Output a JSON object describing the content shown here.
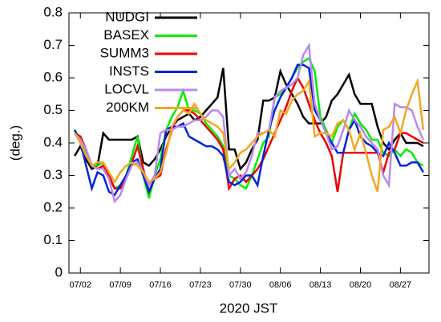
{
  "chart_data": {
    "type": "line",
    "x_label": "2020 JST",
    "y_label": "(deg.)",
    "x": [
      "07/01",
      "07/02",
      "07/03",
      "07/04",
      "07/05",
      "07/06",
      "07/07",
      "07/08",
      "07/09",
      "07/10",
      "07/11",
      "07/12",
      "07/13",
      "07/14",
      "07/15",
      "07/16",
      "07/17",
      "07/18",
      "07/19",
      "07/20",
      "07/21",
      "07/22",
      "07/23",
      "07/24",
      "07/25",
      "07/26",
      "07/27",
      "07/28",
      "07/29",
      "07/30",
      "07/31",
      "08/01",
      "08/02",
      "08/03",
      "08/04",
      "08/05",
      "08/06",
      "08/07",
      "08/08",
      "08/09",
      "08/10",
      "08/11",
      "08/12",
      "08/13",
      "08/14",
      "08/15",
      "08/16",
      "08/17",
      "08/18",
      "08/19",
      "08/20",
      "08/21",
      "08/22",
      "08/23",
      "08/24",
      "08/25",
      "08/26",
      "08/27",
      "08/28",
      "08/29",
      "08/30",
      "08/31"
    ],
    "xlim": [
      "06/30",
      "09/01"
    ],
    "xticks": [
      "07/02",
      "07/09",
      "07/16",
      "07/23",
      "07/30",
      "08/06",
      "08/13",
      "08/20",
      "08/27"
    ],
    "ylim": [
      0,
      0.8
    ],
    "yticks": [
      0,
      0.1,
      0.2,
      0.3,
      0.4,
      0.5,
      0.6,
      0.7,
      0.8
    ],
    "legend": "upper left",
    "series": [
      {
        "name": "NUDGI",
        "color": "#000000",
        "values": [
          0.36,
          0.39,
          0.35,
          0.32,
          0.33,
          0.43,
          0.41,
          0.41,
          0.41,
          0.41,
          0.41,
          0.42,
          0.34,
          0.33,
          0.35,
          0.38,
          0.42,
          0.45,
          0.47,
          0.48,
          0.49,
          0.47,
          0.48,
          0.5,
          0.52,
          0.54,
          0.63,
          0.38,
          0.38,
          0.32,
          0.34,
          0.38,
          0.41,
          0.53,
          0.53,
          0.54,
          0.62,
          0.58,
          0.55,
          0.52,
          0.48,
          0.46,
          0.46,
          0.46,
          0.48,
          0.53,
          0.55,
          0.58,
          0.61,
          0.55,
          0.52,
          0.52,
          0.52,
          0.45,
          0.4,
          0.38,
          0.41,
          0.43,
          0.4,
          0.4,
          0.4,
          0.39
        ]
      },
      {
        "name": "BASEX",
        "color": "#00ee00",
        "values": [
          0.44,
          0.41,
          0.37,
          0.33,
          0.33,
          0.34,
          0.29,
          0.26,
          0.27,
          0.3,
          0.36,
          0.42,
          0.3,
          0.23,
          0.3,
          0.35,
          0.44,
          0.48,
          0.51,
          0.56,
          0.5,
          0.5,
          0.49,
          0.46,
          0.44,
          0.42,
          0.39,
          0.3,
          0.29,
          0.27,
          0.26,
          0.3,
          0.35,
          0.4,
          0.42,
          0.54,
          0.55,
          0.57,
          0.6,
          0.63,
          0.65,
          0.66,
          0.62,
          0.48,
          0.44,
          0.4,
          0.45,
          0.47,
          0.44,
          0.49,
          0.46,
          0.44,
          0.41,
          0.41,
          0.37,
          0.36,
          0.38,
          0.36,
          0.38,
          0.37,
          0.34,
          0.33
        ]
      },
      {
        "name": "SUMM3",
        "color": "#ee0000",
        "values": [
          0.43,
          0.42,
          0.38,
          0.33,
          0.32,
          0.33,
          0.3,
          0.26,
          0.26,
          0.29,
          0.34,
          0.39,
          0.32,
          0.25,
          0.29,
          0.3,
          0.38,
          0.44,
          0.48,
          0.5,
          0.5,
          0.49,
          0.47,
          0.45,
          0.43,
          0.41,
          0.38,
          0.26,
          0.29,
          0.3,
          0.28,
          0.3,
          0.32,
          0.35,
          0.39,
          0.43,
          0.47,
          0.51,
          0.56,
          0.6,
          0.57,
          0.52,
          0.47,
          0.43,
          0.4,
          0.36,
          0.25,
          0.37,
          0.37,
          0.37,
          0.37,
          0.37,
          0.37,
          0.37,
          0.31,
          0.37,
          0.38,
          0.43,
          0.43,
          0.42,
          0.41,
          0.4
        ]
      },
      {
        "name": "INSTS",
        "color": "#0022dd",
        "values": [
          0.44,
          0.4,
          0.33,
          0.26,
          0.31,
          0.3,
          0.25,
          0.24,
          0.27,
          0.3,
          0.34,
          0.35,
          0.3,
          0.25,
          0.29,
          0.32,
          0.44,
          0.45,
          0.45,
          0.46,
          0.42,
          0.41,
          0.4,
          0.39,
          0.39,
          0.38,
          0.36,
          0.28,
          0.27,
          0.28,
          0.3,
          0.3,
          0.27,
          0.36,
          0.44,
          0.5,
          0.54,
          0.57,
          0.6,
          0.64,
          0.64,
          0.63,
          0.5,
          0.47,
          0.43,
          0.4,
          0.37,
          0.37,
          0.44,
          0.47,
          0.42,
          0.4,
          0.39,
          0.37,
          0.36,
          0.4,
          0.37,
          0.33,
          0.33,
          0.34,
          0.34,
          0.31
        ]
      },
      {
        "name": "LOCVL",
        "color": "#bb88ee",
        "values": [
          0.43,
          0.41,
          0.38,
          0.33,
          0.32,
          0.32,
          0.29,
          0.22,
          0.24,
          0.29,
          0.33,
          0.34,
          0.31,
          0.27,
          0.3,
          0.43,
          0.44,
          0.44,
          0.45,
          0.45,
          0.46,
          0.47,
          0.47,
          0.48,
          0.5,
          0.5,
          0.48,
          0.3,
          0.32,
          0.29,
          0.31,
          0.36,
          0.43,
          0.43,
          0.44,
          0.54,
          0.56,
          0.57,
          0.58,
          0.6,
          0.67,
          0.7,
          0.52,
          0.47,
          0.43,
          0.38,
          0.39,
          0.44,
          0.5,
          0.47,
          0.45,
          0.42,
          0.4,
          0.38,
          0.3,
          0.27,
          0.52,
          0.51,
          0.51,
          0.5,
          0.45,
          0.41
        ]
      },
      {
        "name": "200KM",
        "color": "#f5a623",
        "values": [
          0.43,
          0.4,
          0.36,
          0.33,
          0.34,
          0.34,
          0.31,
          0.28,
          0.31,
          0.33,
          0.34,
          0.33,
          0.31,
          0.28,
          0.29,
          0.31,
          0.37,
          0.45,
          0.48,
          0.5,
          0.49,
          0.52,
          0.49,
          0.47,
          0.46,
          0.45,
          0.43,
          0.32,
          0.34,
          0.37,
          0.38,
          0.4,
          0.42,
          0.43,
          0.44,
          0.42,
          0.5,
          0.49,
          0.53,
          0.55,
          0.56,
          0.59,
          0.42,
          0.43,
          0.43,
          0.42,
          0.46,
          0.47,
          0.44,
          0.38,
          0.43,
          0.37,
          0.3,
          0.25,
          0.44,
          0.45,
          0.48,
          0.43,
          0.5,
          0.55,
          0.59,
          0.44
        ]
      }
    ]
  }
}
